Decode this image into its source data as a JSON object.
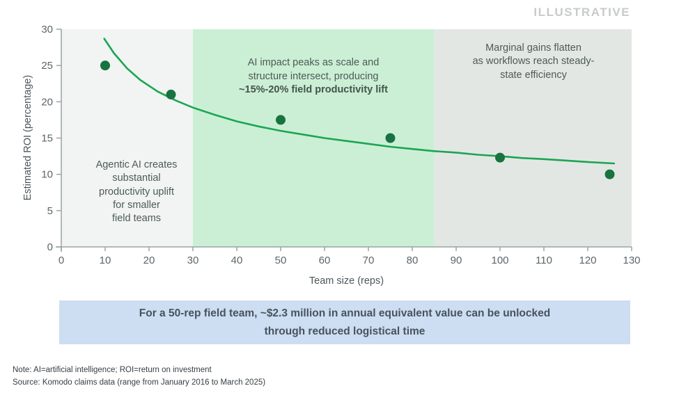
{
  "header": {
    "illustrative_label": "ILLUSTRATIVE"
  },
  "chart_data": {
    "type": "scatter",
    "title": "",
    "xlabel": "Team size (reps)",
    "ylabel": "Estimated ROI (percentage)",
    "xlim": [
      0,
      130
    ],
    "ylim": [
      0,
      30
    ],
    "xticks": [
      0,
      10,
      20,
      30,
      40,
      50,
      60,
      70,
      80,
      90,
      100,
      110,
      120,
      130
    ],
    "yticks": [
      0,
      5,
      10,
      15,
      20,
      25,
      30
    ],
    "grid": false,
    "legend": "none",
    "points": [
      [
        10,
        25
      ],
      [
        25,
        21
      ],
      [
        50,
        17.5
      ],
      [
        75,
        15
      ],
      [
        100,
        12.3
      ],
      [
        125,
        10
      ]
    ],
    "trend": [
      [
        9.8,
        28.7
      ],
      [
        12,
        26.7
      ],
      [
        15,
        24.6
      ],
      [
        18,
        23.0
      ],
      [
        22,
        21.4
      ],
      [
        26,
        20.2
      ],
      [
        30,
        19.2
      ],
      [
        35,
        18.2
      ],
      [
        40,
        17.3
      ],
      [
        45,
        16.6
      ],
      [
        50,
        16.0
      ],
      [
        55,
        15.5
      ],
      [
        60,
        15.0
      ],
      [
        65,
        14.6
      ],
      [
        70,
        14.2
      ],
      [
        75,
        13.8
      ],
      [
        80,
        13.5
      ],
      [
        85,
        13.2
      ],
      [
        90,
        13.0
      ],
      [
        95,
        12.7
      ],
      [
        100,
        12.5
      ],
      [
        105,
        12.25
      ],
      [
        110,
        12.1
      ],
      [
        115,
        11.9
      ],
      [
        120,
        11.7
      ],
      [
        126,
        11.5
      ]
    ],
    "regions": [
      {
        "x0": 0,
        "x1": 30,
        "color": "#f1f4f2",
        "label": "Agentic AI creates\nsubstantial\nproductivity uplift\nfor smaller\nfield teams"
      },
      {
        "x0": 30,
        "x1": 85,
        "color": "#cbefd5",
        "label": "AI impact peaks as scale and\nstructure intersect, producing",
        "label_bold": "~15%-20% field productivity lift"
      },
      {
        "x0": 85,
        "x1": 130,
        "color": "#e3e7e4",
        "label": "Marginal gains flatten\nas workflows reach steady-\nstate efficiency"
      }
    ],
    "colors": {
      "point": "#177340",
      "trend": "#1ba553",
      "axis": "#9aa3a3",
      "tick_label": "#5b6569"
    }
  },
  "callout": {
    "text": "For a 50-rep field team, ~$2.3 million in annual equivalent value can be unlocked\nthrough reduced logistical time"
  },
  "footnotes": {
    "note": "Note: AI=artificial intelligence; ROI=return on investment",
    "source": "Source: Komodo claims data (range from January 2016 to March 2025)"
  }
}
